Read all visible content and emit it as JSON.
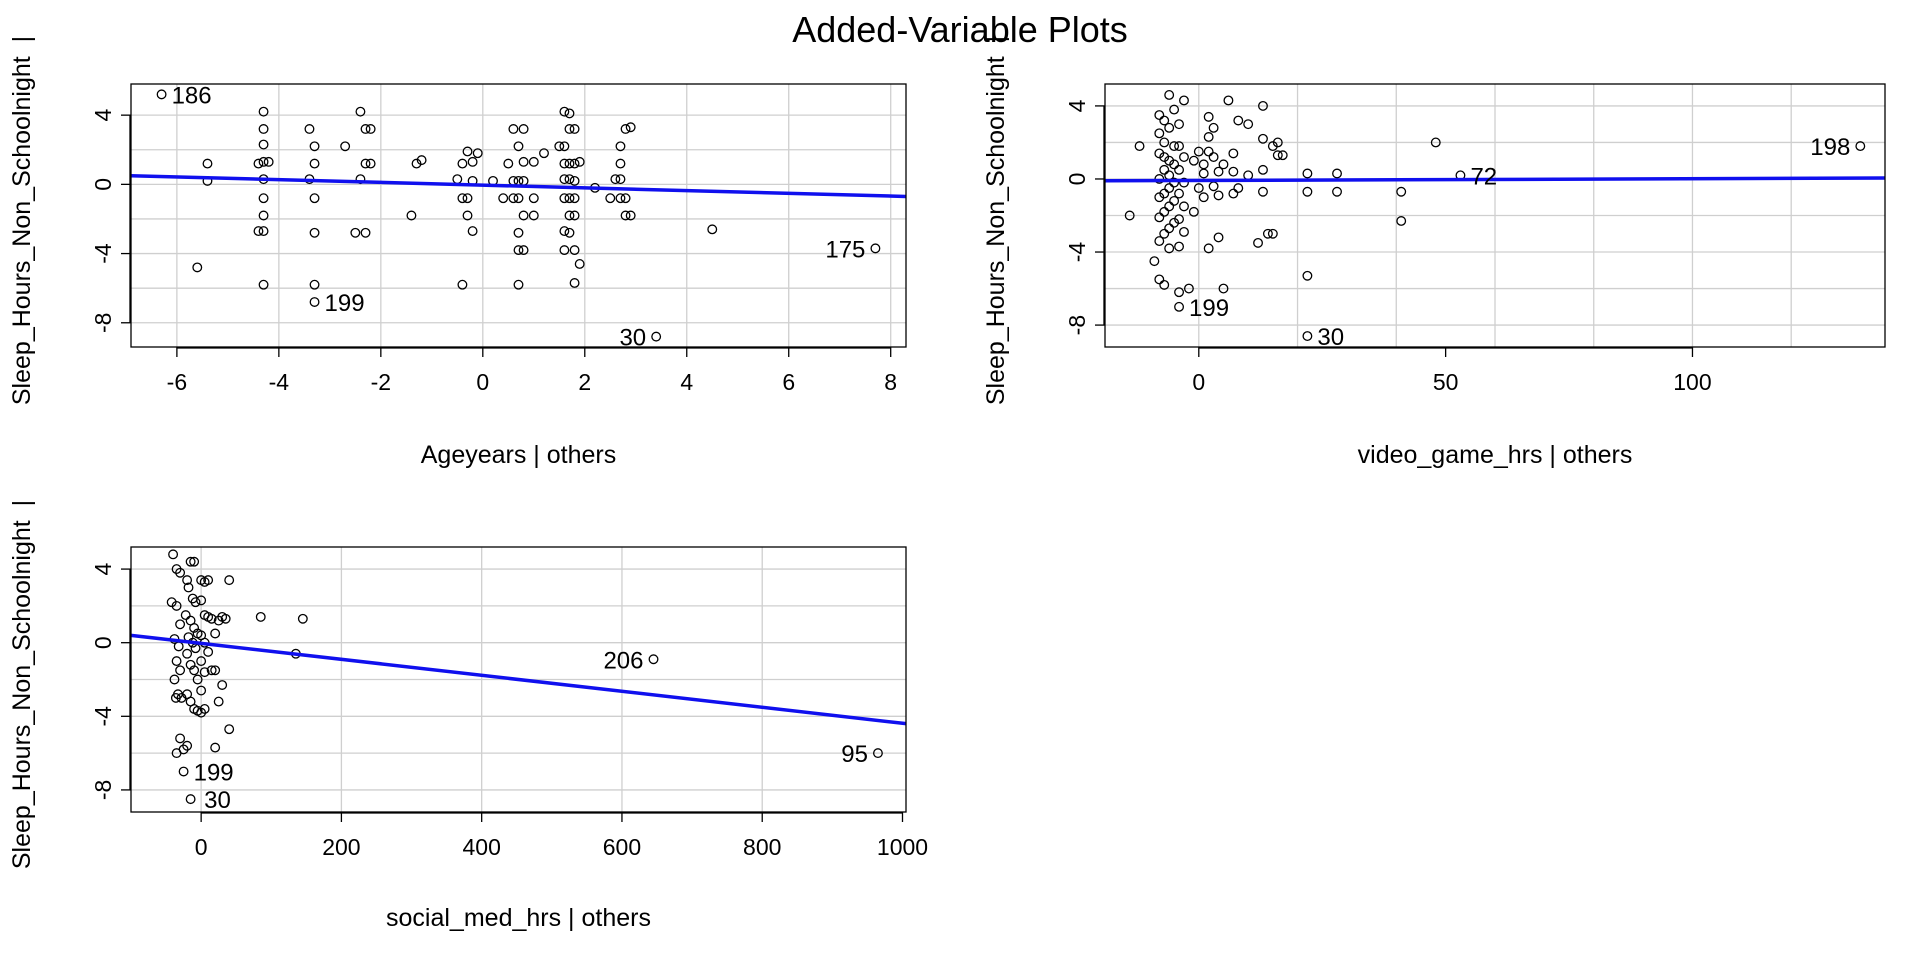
{
  "title": "Added-Variable Plots",
  "chart_data": [
    {
      "type": "scatter",
      "name": "ageyears-panel",
      "xlabel": "Ageyears | others",
      "ylabel": "Sleep_Hours_Non_Schoolnight  |",
      "xlim": [
        -6.9,
        8.3
      ],
      "ylim": [
        -9.4,
        5.8
      ],
      "xticks": [
        -6,
        -4,
        -2,
        0,
        2,
        4,
        6,
        8
      ],
      "yticks": [
        -8,
        -4,
        0,
        4
      ],
      "xgrid": [
        -6,
        -4,
        -2,
        0,
        2,
        4,
        6,
        8
      ],
      "ygrid": [
        -8,
        -6,
        -4,
        -2,
        0,
        2,
        4
      ],
      "fit": {
        "x": [
          -6.9,
          8.3
        ],
        "y": [
          0.5,
          -0.7
        ]
      },
      "labels": [
        {
          "x": -6.3,
          "y": 5.2,
          "text": "186",
          "side": "right"
        },
        {
          "x": -3.3,
          "y": -6.8,
          "text": "199",
          "side": "right"
        },
        {
          "x": 3.4,
          "y": -8.8,
          "text": "30",
          "side": "left"
        },
        {
          "x": 7.7,
          "y": -3.7,
          "text": "175",
          "side": "left"
        }
      ],
      "points": [
        [
          -6.3,
          5.2
        ],
        [
          -5.4,
          1.2
        ],
        [
          -5.4,
          0.2
        ],
        [
          -5.6,
          -4.8
        ],
        [
          -4.3,
          4.2
        ],
        [
          -4.3,
          3.2
        ],
        [
          -4.3,
          2.3
        ],
        [
          -4.3,
          1.3
        ],
        [
          -4.2,
          1.3
        ],
        [
          -4.4,
          1.2
        ],
        [
          -4.3,
          0.3
        ],
        [
          -4.3,
          -0.8
        ],
        [
          -4.3,
          -1.8
        ],
        [
          -4.4,
          -2.7
        ],
        [
          -4.3,
          -2.7
        ],
        [
          -4.3,
          -5.8
        ],
        [
          -3.4,
          3.2
        ],
        [
          -3.3,
          2.2
        ],
        [
          -3.3,
          1.2
        ],
        [
          -3.4,
          0.3
        ],
        [
          -3.3,
          -0.8
        ],
        [
          -3.3,
          -2.8
        ],
        [
          -3.3,
          -5.8
        ],
        [
          -3.3,
          -6.8
        ],
        [
          -2.7,
          2.2
        ],
        [
          -2.4,
          4.2
        ],
        [
          -2.3,
          3.2
        ],
        [
          -2.2,
          3.2
        ],
        [
          -2.4,
          0.3
        ],
        [
          -2.2,
          1.2
        ],
        [
          -2.3,
          1.2
        ],
        [
          -2.5,
          -2.8
        ],
        [
          -2.3,
          -2.8
        ],
        [
          -1.3,
          1.2
        ],
        [
          -1.2,
          1.4
        ],
        [
          -1.4,
          -1.8
        ],
        [
          -0.5,
          0.3
        ],
        [
          -0.4,
          1.2
        ],
        [
          -0.3,
          1.9
        ],
        [
          -0.4,
          -0.8
        ],
        [
          -0.3,
          -0.8
        ],
        [
          -0.3,
          -1.8
        ],
        [
          -0.2,
          -2.7
        ],
        [
          -0.4,
          -5.8
        ],
        [
          -0.2,
          1.3
        ],
        [
          -0.2,
          0.2
        ],
        [
          -0.1,
          1.8
        ],
        [
          0.2,
          0.2
        ],
        [
          0.4,
          -0.8
        ],
        [
          0.5,
          1.2
        ],
        [
          0.6,
          3.2
        ],
        [
          0.8,
          3.2
        ],
        [
          0.7,
          2.2
        ],
        [
          0.6,
          0.2
        ],
        [
          0.7,
          0.2
        ],
        [
          0.8,
          0.2
        ],
        [
          0.7,
          -0.8
        ],
        [
          0.6,
          -0.8
        ],
        [
          0.8,
          -1.8
        ],
        [
          0.7,
          -2.8
        ],
        [
          0.7,
          -3.8
        ],
        [
          0.8,
          -3.8
        ],
        [
          0.7,
          -5.8
        ],
        [
          0.8,
          1.3
        ],
        [
          1.0,
          1.3
        ],
        [
          1.0,
          -0.8
        ],
        [
          1.0,
          -1.8
        ],
        [
          1.2,
          1.8
        ],
        [
          1.5,
          2.2
        ],
        [
          1.6,
          4.2
        ],
        [
          1.7,
          4.1
        ],
        [
          1.7,
          3.2
        ],
        [
          1.8,
          3.2
        ],
        [
          1.6,
          2.2
        ],
        [
          1.7,
          1.2
        ],
        [
          1.6,
          1.2
        ],
        [
          1.8,
          1.2
        ],
        [
          1.9,
          1.3
        ],
        [
          1.6,
          0.3
        ],
        [
          1.7,
          0.3
        ],
        [
          1.8,
          0.2
        ],
        [
          1.7,
          -0.8
        ],
        [
          1.6,
          -0.8
        ],
        [
          1.8,
          -0.8
        ],
        [
          1.7,
          -1.8
        ],
        [
          1.8,
          -1.8
        ],
        [
          1.6,
          -2.7
        ],
        [
          1.7,
          -2.8
        ],
        [
          1.8,
          -3.8
        ],
        [
          1.6,
          -3.8
        ],
        [
          1.9,
          -4.6
        ],
        [
          1.8,
          -5.7
        ],
        [
          2.2,
          -0.2
        ],
        [
          2.5,
          -0.8
        ],
        [
          2.6,
          0.3
        ],
        [
          2.7,
          0.3
        ],
        [
          2.7,
          1.2
        ],
        [
          2.7,
          2.2
        ],
        [
          2.8,
          3.2
        ],
        [
          2.9,
          3.3
        ],
        [
          2.7,
          -0.8
        ],
        [
          2.8,
          -0.8
        ],
        [
          2.8,
          -1.8
        ],
        [
          2.9,
          -1.8
        ],
        [
          3.4,
          -8.8
        ],
        [
          4.5,
          -2.6
        ],
        [
          7.7,
          -3.7
        ]
      ]
    },
    {
      "type": "scatter",
      "name": "video-game-panel",
      "xlabel": "video_game_hrs | others",
      "ylabel": "Sleep_Hours_Non_Schoolnight  |",
      "xlim": [
        -19,
        139
      ],
      "ylim": [
        -9.2,
        5.2
      ],
      "xticks": [
        0,
        50,
        100
      ],
      "yticks": [
        -8,
        -4,
        0,
        4
      ],
      "xgrid": [
        0,
        20,
        40,
        60,
        80,
        100,
        120
      ],
      "ygrid": [
        -8,
        -6,
        -4,
        -2,
        0,
        2,
        4
      ],
      "fit": {
        "x": [
          -19,
          139
        ],
        "y": [
          -0.1,
          0.05
        ]
      },
      "labels": [
        {
          "x": 134,
          "y": 1.8,
          "text": "198",
          "side": "left"
        },
        {
          "x": 53,
          "y": 0.2,
          "text": "72",
          "side": "right"
        },
        {
          "x": -4,
          "y": -7.0,
          "text": "199",
          "side": "right"
        },
        {
          "x": 22,
          "y": -8.6,
          "text": "30",
          "side": "right"
        }
      ],
      "points": [
        [
          -14,
          -2.0
        ],
        [
          -12,
          1.8
        ],
        [
          -8,
          3.5
        ],
        [
          -7,
          3.2
        ],
        [
          -6,
          4.6
        ],
        [
          -5,
          3.8
        ],
        [
          -6,
          2.8
        ],
        [
          -8,
          2.5
        ],
        [
          -7,
          2.0
        ],
        [
          -5,
          1.8
        ],
        [
          -8,
          1.4
        ],
        [
          -7,
          1.2
        ],
        [
          -6,
          1.0
        ],
        [
          -5,
          0.8
        ],
        [
          -7,
          0.5
        ],
        [
          -6,
          0.2
        ],
        [
          -8,
          0.0
        ],
        [
          -5,
          -0.2
        ],
        [
          -6,
          -0.5
        ],
        [
          -7,
          -0.8
        ],
        [
          -8,
          -1.0
        ],
        [
          -5,
          -1.2
        ],
        [
          -6,
          -1.5
        ],
        [
          -7,
          -1.8
        ],
        [
          -8,
          -2.1
        ],
        [
          -5,
          -2.4
        ],
        [
          -6,
          -2.7
        ],
        [
          -7,
          -3.0
        ],
        [
          -8,
          -3.4
        ],
        [
          -6,
          -3.8
        ],
        [
          -9,
          -4.5
        ],
        [
          -8,
          -5.5
        ],
        [
          -7,
          -5.8
        ],
        [
          -4,
          3.0
        ],
        [
          -3,
          4.3
        ],
        [
          -4,
          1.8
        ],
        [
          -3,
          1.2
        ],
        [
          -4,
          0.5
        ],
        [
          -3,
          -0.2
        ],
        [
          -4,
          -0.8
        ],
        [
          -3,
          -1.5
        ],
        [
          -4,
          -2.2
        ],
        [
          -3,
          -2.9
        ],
        [
          -4,
          -3.7
        ],
        [
          -4,
          -6.2
        ],
        [
          -2,
          -6.0
        ],
        [
          -4,
          -7.0
        ],
        [
          -1,
          1.0
        ],
        [
          0,
          1.5
        ],
        [
          1,
          0.3
        ],
        [
          0,
          -0.5
        ],
        [
          1,
          -1.0
        ],
        [
          -1,
          -1.8
        ],
        [
          2,
          -3.8
        ],
        [
          1,
          0.8
        ],
        [
          2,
          1.5
        ],
        [
          2,
          3.4
        ],
        [
          3,
          2.8
        ],
        [
          2,
          2.3
        ],
        [
          3,
          1.2
        ],
        [
          4,
          0.4
        ],
        [
          3,
          -0.4
        ],
        [
          4,
          -0.9
        ],
        [
          4,
          -3.2
        ],
        [
          5,
          -6.0
        ],
        [
          5,
          0.8
        ],
        [
          6,
          4.3
        ],
        [
          7,
          1.4
        ],
        [
          7,
          0.4
        ],
        [
          7,
          -0.8
        ],
        [
          8,
          3.2
        ],
        [
          8,
          -0.5
        ],
        [
          10,
          3.0
        ],
        [
          10,
          0.2
        ],
        [
          13,
          4.0
        ],
        [
          13,
          2.2
        ],
        [
          13,
          0.5
        ],
        [
          13,
          -0.7
        ],
        [
          15,
          1.8
        ],
        [
          16,
          2.0
        ],
        [
          16,
          1.3
        ],
        [
          17,
          1.3
        ],
        [
          15,
          -3.0
        ],
        [
          12,
          -3.5
        ],
        [
          14,
          -3.0
        ],
        [
          22,
          0.3
        ],
        [
          22,
          -0.7
        ],
        [
          22,
          -5.3
        ],
        [
          22,
          -8.6
        ],
        [
          28,
          0.3
        ],
        [
          28,
          -0.7
        ],
        [
          41,
          -0.7
        ],
        [
          41,
          -2.3
        ],
        [
          48,
          2.0
        ],
        [
          53,
          0.2
        ],
        [
          134,
          1.8
        ]
      ]
    },
    {
      "type": "scatter",
      "name": "social-media-panel",
      "xlabel": "social_med_hrs | others",
      "ylabel": "Sleep_Hours_Non_Schoolnight  |",
      "xlim": [
        -100,
        1005
      ],
      "ylim": [
        -9.2,
        5.2
      ],
      "xticks": [
        0,
        200,
        400,
        600,
        800,
        1000
      ],
      "yticks": [
        -8,
        -4,
        0,
        4
      ],
      "xgrid": [
        0,
        200,
        400,
        600,
        800
      ],
      "ygrid": [
        -8,
        -6,
        -4,
        -2,
        0,
        2,
        4
      ],
      "fit": {
        "x": [
          -100,
          1005
        ],
        "y": [
          0.4,
          -4.4
        ]
      },
      "labels": [
        {
          "x": 645,
          "y": -0.9,
          "text": "206",
          "side": "left"
        },
        {
          "x": 965,
          "y": -6.0,
          "text": "95",
          "side": "left"
        },
        {
          "x": -25,
          "y": -7.0,
          "text": "199",
          "side": "right"
        },
        {
          "x": -10,
          "y": -8.5,
          "text": "30",
          "side": "right"
        }
      ],
      "points": [
        [
          -40,
          4.8
        ],
        [
          -35,
          4.0
        ],
        [
          -30,
          3.8
        ],
        [
          -42,
          2.2
        ],
        [
          -35,
          2.0
        ],
        [
          -30,
          1.0
        ],
        [
          -38,
          0.2
        ],
        [
          -32,
          -0.2
        ],
        [
          -35,
          -1.0
        ],
        [
          -30,
          -1.5
        ],
        [
          -38,
          -2.0
        ],
        [
          -33,
          -2.8
        ],
        [
          -28,
          -3.0
        ],
        [
          -36,
          -3.0
        ],
        [
          -30,
          -5.2
        ],
        [
          -35,
          -6.0
        ],
        [
          -25,
          -5.8
        ],
        [
          -20,
          -5.6
        ],
        [
          -20,
          3.4
        ],
        [
          -15,
          4.4
        ],
        [
          -10,
          4.4
        ],
        [
          -18,
          3.0
        ],
        [
          -12,
          2.4
        ],
        [
          -8,
          2.2
        ],
        [
          -22,
          1.5
        ],
        [
          -15,
          1.2
        ],
        [
          -10,
          0.8
        ],
        [
          -5,
          0.5
        ],
        [
          -18,
          0.3
        ],
        [
          -12,
          0.0
        ],
        [
          -8,
          -0.3
        ],
        [
          -20,
          -0.6
        ],
        [
          -15,
          -1.2
        ],
        [
          -10,
          -1.5
        ],
        [
          -5,
          -2.0
        ],
        [
          -20,
          -2.8
        ],
        [
          -15,
          -3.2
        ],
        [
          -10,
          -3.6
        ],
        [
          -5,
          -3.7
        ],
        [
          -15,
          -8.5
        ],
        [
          -25,
          -7.0
        ],
        [
          0,
          3.4
        ],
        [
          5,
          3.3
        ],
        [
          10,
          3.4
        ],
        [
          0,
          2.3
        ],
        [
          5,
          1.5
        ],
        [
          10,
          1.4
        ],
        [
          15,
          1.3
        ],
        [
          0,
          0.4
        ],
        [
          5,
          0.0
        ],
        [
          10,
          -0.5
        ],
        [
          0,
          -1.0
        ],
        [
          5,
          -1.6
        ],
        [
          15,
          -1.5
        ],
        [
          20,
          -1.5
        ],
        [
          0,
          -2.6
        ],
        [
          5,
          -3.6
        ],
        [
          0,
          -3.8
        ],
        [
          20,
          0.5
        ],
        [
          25,
          1.2
        ],
        [
          30,
          1.4
        ],
        [
          35,
          1.3
        ],
        [
          40,
          3.4
        ],
        [
          30,
          -2.3
        ],
        [
          25,
          -3.2
        ],
        [
          20,
          -5.7
        ],
        [
          40,
          -4.7
        ],
        [
          85,
          1.4
        ],
        [
          135,
          -0.6
        ],
        [
          145,
          1.3
        ],
        [
          645,
          -0.9
        ],
        [
          965,
          -6.0
        ]
      ]
    }
  ]
}
